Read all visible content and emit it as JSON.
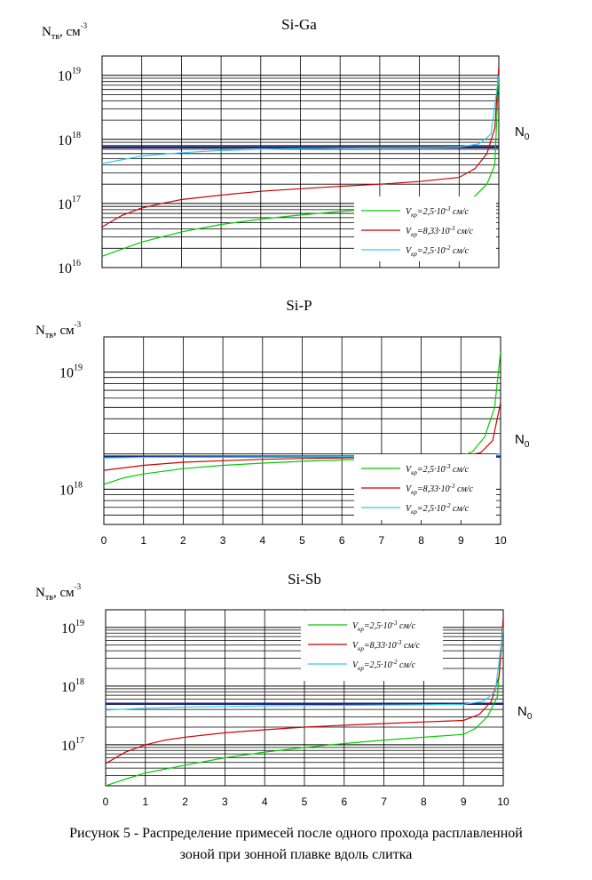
{
  "caption": {
    "line1": "Рисунок 5 - Распределение примесей после одного прохода расплавленной",
    "line2": "зоной при зонной плавке вдоль слитка"
  },
  "chart_data": [
    {
      "type": "line",
      "title": "Si-Ga",
      "ylabel": "Nтв, см-3",
      "ylabel_base": "N",
      "ylabel_sub": "тв",
      "ylabel_rest": ", см",
      "ylabel_sup": "-3",
      "y_scale": "log",
      "xlim": [
        0,
        10
      ],
      "ylim": [
        1e+16,
        2e+19
      ],
      "grid": true,
      "x_ticks": [],
      "y_ticks": [
        {
          "value": 1e+16,
          "base": "10",
          "exp": "16"
        },
        {
          "value": 1e+17,
          "base": "10",
          "exp": "17"
        },
        {
          "value": 1e+18,
          "base": "10",
          "exp": "18"
        },
        {
          "value": 1e+19,
          "base": "10",
          "exp": "19"
        }
      ],
      "legend_position": "lower-right",
      "reference_line": {
        "label_base": "N",
        "label_sub": "0",
        "y": 7.5e+17,
        "color": "#1a237e"
      },
      "series": [
        {
          "name": "Vкр=2,5·10-3 см/с",
          "v_value": "=2,5·10",
          "v_exp": "-3",
          "v_unit": " см/с",
          "color": "#00cc00",
          "points": [
            [
              0,
              1.5e+16
            ],
            [
              1,
              2.5e+16
            ],
            [
              2,
              3.6e+16
            ],
            [
              3,
              4.7e+16
            ],
            [
              4,
              5.7e+16
            ],
            [
              5,
              6.6e+16
            ],
            [
              6,
              7.5e+16
            ],
            [
              7,
              8.4e+16
            ],
            [
              8,
              9.2e+16
            ],
            [
              9,
              1.05e+17
            ],
            [
              9.4,
              1.3e+17
            ],
            [
              9.7,
              2e+17
            ],
            [
              9.9,
              4e+17
            ],
            [
              10,
              1.2e+19
            ]
          ]
        },
        {
          "name": "Vкр=8,33·10-3 см/с",
          "v_value": "=8,33·10",
          "v_exp": "-3",
          "v_unit": " см/с",
          "color": "#cc0000",
          "points": [
            [
              0,
              4.3e+16
            ],
            [
              0.5,
              6.5e+16
            ],
            [
              1,
              8.5e+16
            ],
            [
              1.5,
              1e+17
            ],
            [
              2,
              1.15e+17
            ],
            [
              3,
              1.35e+17
            ],
            [
              4,
              1.55e+17
            ],
            [
              5,
              1.7e+17
            ],
            [
              6,
              1.85e+17
            ],
            [
              7,
              2e+17
            ],
            [
              8,
              2.2e+17
            ],
            [
              9,
              2.55e+17
            ],
            [
              9.4,
              3.5e+17
            ],
            [
              9.7,
              6e+17
            ],
            [
              9.9,
              1.5e+18
            ],
            [
              10,
              1.4e+19
            ]
          ]
        },
        {
          "name": "Vкр=2,5·10-2 см/с",
          "v_value": "=2,5·10",
          "v_exp": "-2",
          "v_unit": " см/с",
          "color": "#33ccee",
          "points": [
            [
              0,
              4.2e+17
            ],
            [
              1,
              5.5e+17
            ],
            [
              2,
              6.2e+17
            ],
            [
              3,
              6.7e+17
            ],
            [
              4,
              7e+17
            ],
            [
              5,
              7.2e+17
            ],
            [
              6,
              7.3e+17
            ],
            [
              7,
              7.4e+17
            ],
            [
              8,
              7.45e+17
            ],
            [
              9,
              7.6e+17
            ],
            [
              9.5,
              8.5e+17
            ],
            [
              9.8,
              1.2e+18
            ],
            [
              10,
              1e+19
            ]
          ]
        }
      ]
    },
    {
      "type": "line",
      "title": "Si-P",
      "ylabel": "Nтв, см-3",
      "ylabel_base": "N",
      "ylabel_sub": "тв",
      "ylabel_rest": ", см",
      "ylabel_sup": "-3",
      "y_scale": "log",
      "xlim": [
        0,
        10
      ],
      "ylim": [
        5e+17,
        2e+19
      ],
      "grid": true,
      "x_ticks": [
        "0",
        "1",
        "2",
        "3",
        "4",
        "5",
        "6",
        "7",
        "8",
        "9",
        "10"
      ],
      "y_ticks": [
        {
          "value": 1e+18,
          "base": "10",
          "exp": "18"
        },
        {
          "value": 1e+19,
          "base": "10",
          "exp": "19"
        }
      ],
      "legend_position": "lower-right",
      "reference_line": {
        "label_base": "N",
        "label_sub": "0",
        "y": 1.9e+18,
        "color": "#1a237e"
      },
      "series": [
        {
          "name": "Vкр=2,5·10-3 см/с",
          "v_value": "=2,5·10",
          "v_exp": "-3",
          "v_unit": " см/с",
          "color": "#00cc00",
          "points": [
            [
              0,
              1.1e+18
            ],
            [
              0.5,
              1.25e+18
            ],
            [
              1,
              1.35e+18
            ],
            [
              2,
              1.5e+18
            ],
            [
              3,
              1.6e+18
            ],
            [
              4,
              1.67e+18
            ],
            [
              5,
              1.73e+18
            ],
            [
              6,
              1.78e+18
            ],
            [
              7,
              1.82e+18
            ],
            [
              8,
              1.85e+18
            ],
            [
              9,
              1.9e+18
            ],
            [
              9.3,
              2.1e+18
            ],
            [
              9.6,
              2.8e+18
            ],
            [
              9.85,
              5e+18
            ],
            [
              10,
              1.5e+19
            ]
          ]
        },
        {
          "name": "Vкр=8,33·10-3 см/с",
          "v_value": "=8,33·10",
          "v_exp": "-3",
          "v_unit": " см/с",
          "color": "#cc0000",
          "points": [
            [
              0,
              1.45e+18
            ],
            [
              1,
              1.6e+18
            ],
            [
              2,
              1.7e+18
            ],
            [
              3,
              1.75e+18
            ],
            [
              4,
              1.8e+18
            ],
            [
              5,
              1.83e+18
            ],
            [
              6,
              1.85e+18
            ],
            [
              7,
              1.87e+18
            ],
            [
              8,
              1.88e+18
            ],
            [
              9,
              1.9e+18
            ],
            [
              9.5,
              2.05e+18
            ],
            [
              9.8,
              2.6e+18
            ],
            [
              10,
              5.5e+18
            ]
          ]
        },
        {
          "name": "Vкр=2,5·10-2 см/с",
          "v_value": "=2,5·10",
          "v_exp": "-2",
          "v_unit": " см/с",
          "color": "#33ccee",
          "points": [
            [
              0,
              1.85e+18
            ],
            [
              1,
              1.87e+18
            ],
            [
              3,
              1.88e+18
            ],
            [
              5,
              1.89e+18
            ],
            [
              7,
              1.9e+18
            ],
            [
              9,
              1.9e+18
            ],
            [
              9.7,
              1.93e+18
            ],
            [
              10,
              2e+18
            ]
          ]
        }
      ]
    },
    {
      "type": "line",
      "title": "Si-Sb",
      "ylabel": "Nтв, см-3",
      "ylabel_base": "N",
      "ylabel_sub": "тв",
      "ylabel_rest": ", см",
      "ylabel_sup": "-3",
      "y_scale": "log",
      "xlim": [
        0,
        10
      ],
      "ylim": [
        2e+16,
        2e+19
      ],
      "grid": true,
      "x_ticks": [
        "0",
        "1",
        "2",
        "3",
        "4",
        "5",
        "6",
        "7",
        "8",
        "9",
        "10"
      ],
      "y_ticks": [
        {
          "value": 1e+17,
          "base": "10",
          "exp": "17"
        },
        {
          "value": 1e+18,
          "base": "10",
          "exp": "18"
        },
        {
          "value": 1e+19,
          "base": "10",
          "exp": "19"
        }
      ],
      "legend_position": "top-right",
      "reference_line": {
        "label_base": "N",
        "label_sub": "0",
        "y": 5e+17,
        "color": "#1a237e"
      },
      "series": [
        {
          "name": "Vкр=2,5·10-3 см/с",
          "v_value": "=2,5·10",
          "v_exp": "-3",
          "v_unit": " см/с",
          "color": "#00cc00",
          "points": [
            [
              0,
              2e+16
            ],
            [
              0.5,
              2.6e+16
            ],
            [
              1,
              3.3e+16
            ],
            [
              2,
              4.5e+16
            ],
            [
              3,
              6e+16
            ],
            [
              4,
              7.5e+16
            ],
            [
              5,
              9e+16
            ],
            [
              6,
              1.05e+17
            ],
            [
              7,
              1.2e+17
            ],
            [
              8,
              1.35e+17
            ],
            [
              9,
              1.5e+17
            ],
            [
              9.3,
              1.9e+17
            ],
            [
              9.6,
              3e+17
            ],
            [
              9.85,
              6.5e+17
            ],
            [
              10,
              1.2e+19
            ]
          ]
        },
        {
          "name": "Vкр=8,33·10-3 см/с",
          "v_value": "=8,33·10",
          "v_exp": "-3",
          "v_unit": " см/с",
          "color": "#cc0000",
          "points": [
            [
              0,
              4.8e+16
            ],
            [
              0.5,
              7.5e+16
            ],
            [
              1,
              1e+17
            ],
            [
              1.5,
              1.2e+17
            ],
            [
              2,
              1.35e+17
            ],
            [
              3,
              1.6e+17
            ],
            [
              4,
              1.8e+17
            ],
            [
              5,
              2e+17
            ],
            [
              6,
              2.15e+17
            ],
            [
              7,
              2.3e+17
            ],
            [
              8,
              2.45e+17
            ],
            [
              9,
              2.6e+17
            ],
            [
              9.4,
              3.3e+17
            ],
            [
              9.7,
              5.5e+17
            ],
            [
              9.9,
              1.5e+18
            ],
            [
              10,
              1.5e+19
            ]
          ]
        },
        {
          "name": "Vкр=2,5·10-2 см/с",
          "v_value": "=2,5·10",
          "v_exp": "-2",
          "v_unit": " см/с",
          "color": "#33ccee",
          "points": [
            [
              0,
              3.9e+17
            ],
            [
              1,
              4.2e+17
            ],
            [
              2,
              4.4e+17
            ],
            [
              3,
              4.5e+17
            ],
            [
              4,
              4.6e+17
            ],
            [
              5,
              4.65e+17
            ],
            [
              6,
              4.7e+17
            ],
            [
              7,
              4.75e+17
            ],
            [
              8,
              4.8e+17
            ],
            [
              9,
              4.9e+17
            ],
            [
              9.5,
              5.5e+17
            ],
            [
              9.8,
              8e+17
            ],
            [
              10,
              1e+19
            ]
          ]
        }
      ]
    }
  ]
}
